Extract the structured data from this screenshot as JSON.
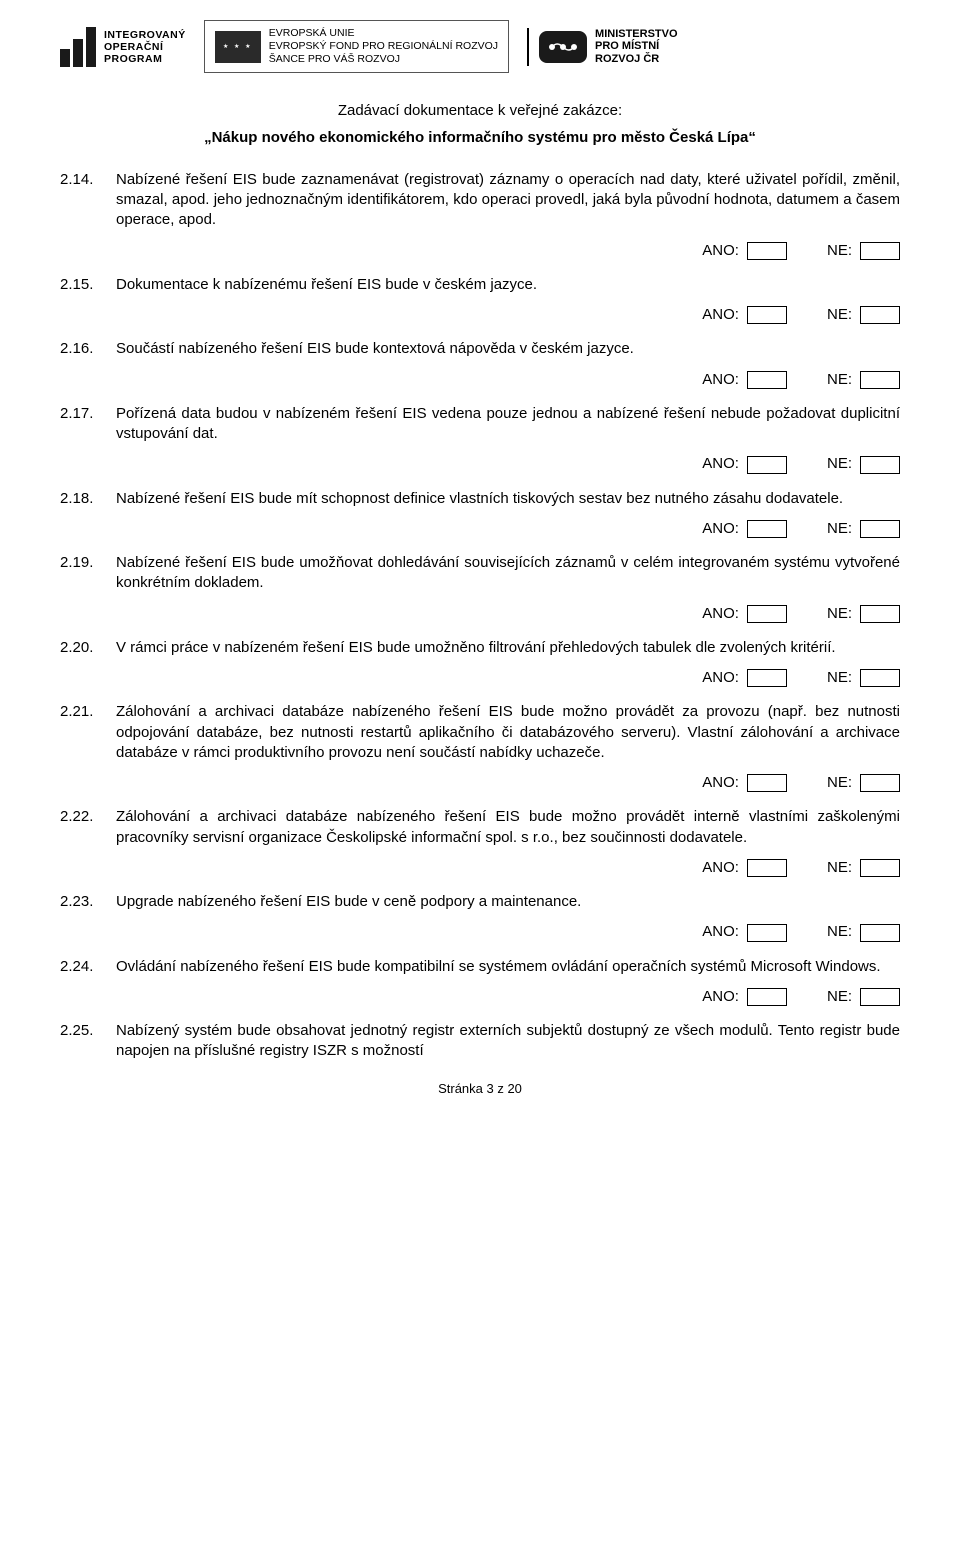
{
  "header": {
    "iop_lines": [
      "INTEGROVANÝ",
      "OPERAČNÍ",
      "PROGRAM"
    ],
    "eu_lines": [
      "EVROPSKÁ UNIE",
      "EVROPSKÝ FOND PRO REGIONÁLNÍ ROZVOJ",
      "ŠANCE PRO VÁŠ ROZVOJ"
    ],
    "mmr_lines": [
      "MINISTERSTVO",
      "PRO MÍSTNÍ",
      "ROZVOJ ČR"
    ]
  },
  "title": "Zadávací dokumentace k veřejné zakázce:",
  "subtitle": "„Nákup nového ekonomického informačního systému pro město Česká Lípa“",
  "ano_label": "ANO:",
  "ne_label": "NE:",
  "items": [
    {
      "num": "2.14.",
      "text": "Nabízené řešení EIS bude zaznamenávat (registrovat) záznamy o operacích nad daty, které uživatel pořídil, změnil, smazal, apod. jeho jednoznačným identifikátorem, kdo operaci provedl, jaká byla původní hodnota, datumem a časem operace, apod."
    },
    {
      "num": "2.15.",
      "text": "Dokumentace k nabízenému řešení EIS bude v českém jazyce."
    },
    {
      "num": "2.16.",
      "text": "Součástí nabízeného řešení EIS bude kontextová nápověda v českém jazyce."
    },
    {
      "num": "2.17.",
      "text": "Pořízená data budou v nabízeném řešení EIS vedena pouze jednou a nabízené řešení nebude požadovat duplicitní vstupování dat."
    },
    {
      "num": "2.18.",
      "text": "Nabízené řešení EIS bude mít schopnost definice vlastních tiskových sestav bez nutného zásahu dodavatele."
    },
    {
      "num": "2.19.",
      "text": "Nabízené řešení EIS bude umožňovat dohledávání souvisejících záznamů v celém integrovaném systému vytvořené konkrétním dokladem."
    },
    {
      "num": "2.20.",
      "text": "V rámci práce v nabízeném řešení EIS bude umožněno filtrování přehledových tabulek dle zvolených kritérií."
    },
    {
      "num": "2.21.",
      "text": "Zálohování a archivaci databáze nabízeného řešení EIS bude možno provádět za provozu (např. bez nutnosti odpojování databáze, bez nutnosti restartů aplikačního či databázového serveru). Vlastní zálohování a archivace databáze v rámci produktivního provozu není součástí nabídky uchazeče."
    },
    {
      "num": "2.22.",
      "text": "Zálohování a archivaci databáze nabízeného řešení EIS bude možno provádět interně vlastními zaškolenými pracovníky servisní organizace Českolipské informační spol. s r.o., bez součinnosti dodavatele."
    },
    {
      "num": "2.23.",
      "text": "Upgrade nabízeného řešení EIS bude v ceně podpory a maintenance."
    },
    {
      "num": "2.24.",
      "text": "Ovládání nabízeného řešení EIS bude kompatibilní se systémem ovládání operačních systémů Microsoft Windows."
    },
    {
      "num": "2.25.",
      "text": "Nabízený systém bude obsahovat jednotný registr externích subjektů dostupný ze všech modulů. Tento registr bude napojen na příslušné registry ISZR s možností",
      "no_check": true
    }
  ],
  "footer": "Stránka 3 z 20"
}
